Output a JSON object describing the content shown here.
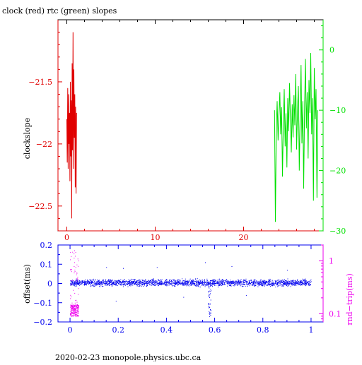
{
  "title": "clock (red) rtc (green) slopes",
  "footer": "2020-02-23  monopole.physics.ubc.ca",
  "colors": {
    "clock": "#e00000",
    "rtc": "#00e000",
    "offset": "#0000ee",
    "roundtrip": "#ee00ee",
    "frame": "#000000"
  },
  "chart_data": [
    {
      "type": "line",
      "panel": "top",
      "title": "clock (red) rtc (green) slopes",
      "ylabel": "clockslope",
      "xlim": [
        -1,
        29
      ],
      "ylim_left": [
        -22.7,
        -21.0
      ],
      "ylim_right": [
        -30,
        5
      ],
      "x_ticks": [
        0,
        10,
        20
      ],
      "y_ticks_left": [
        -21.5,
        -22,
        -22.5
      ],
      "y_tick_labels_left": [
        "−21.5",
        "−22",
        "−22.5"
      ],
      "y_ticks_right": [
        0,
        -10,
        -20,
        -30
      ],
      "y_tick_labels_right": [
        "0",
        "−10",
        "−20",
        "−30"
      ],
      "series": [
        {
          "color": "clock",
          "axis": "left",
          "x": [
            0.0,
            0.05,
            0.1,
            0.15,
            0.2,
            0.25,
            0.3,
            0.35,
            0.4,
            0.45,
            0.5,
            0.55,
            0.6,
            0.65,
            0.7,
            0.75,
            0.8,
            0.85,
            0.9,
            0.95,
            1.0,
            1.05,
            1.1
          ],
          "y": [
            -21.8,
            -22.15,
            -21.55,
            -22.2,
            -21.6,
            -22.0,
            -21.75,
            -22.3,
            -21.5,
            -22.1,
            -21.65,
            -22.6,
            -21.35,
            -22.05,
            -21.1,
            -22.2,
            -21.4,
            -21.95,
            -21.6,
            -22.35,
            -21.7,
            -22.4,
            -21.75
          ]
        },
        {
          "color": "rtc",
          "axis": "right",
          "x": [
            23.5,
            23.6,
            23.7,
            23.8,
            23.9,
            24.0,
            24.1,
            24.2,
            24.3,
            24.4,
            24.5,
            24.6,
            24.7,
            24.8,
            24.9,
            25.0,
            25.1,
            25.2,
            25.3,
            25.4,
            25.5,
            25.6,
            25.7,
            25.8,
            25.9,
            26.0,
            26.1,
            26.2,
            26.3,
            26.4,
            26.5,
            26.6,
            26.7,
            26.8,
            26.9,
            27.0,
            27.1,
            27.2,
            27.3,
            27.4,
            27.5,
            27.6,
            27.7,
            27.8,
            27.9,
            28.0,
            28.1,
            28.2,
            28.3,
            28.4
          ],
          "y": [
            -10.0,
            -28.5,
            -13.0,
            -8.5,
            -15.0,
            -11.0,
            -7.0,
            -14.0,
            -9.5,
            -21.0,
            -12.0,
            -6.5,
            -16.0,
            -10.5,
            -19.5,
            -8.0,
            -13.5,
            -5.5,
            -11.5,
            -17.0,
            -9.0,
            -14.5,
            -7.5,
            -12.5,
            -4.0,
            -16.5,
            -10.0,
            -6.0,
            -20.0,
            -11.0,
            -2.5,
            -15.5,
            -8.5,
            -23.0,
            -9.5,
            -1.5,
            -13.0,
            -7.0,
            -18.0,
            -5.0,
            -10.5,
            -0.5,
            -14.0,
            -8.0,
            -25.0,
            -3.0,
            -11.5,
            -6.5,
            -24.5,
            -10.0
          ]
        }
      ]
    },
    {
      "type": "scatter",
      "panel": "bottom",
      "ylabel_left": "offset(ms)",
      "ylabel_right": "rnd−trip(ms)",
      "xlim": [
        -0.05,
        1.05
      ],
      "ylim_left": [
        -0.2,
        0.2
      ],
      "right_axis_scale": "log",
      "ylim_right": [
        0.07,
        2.0
      ],
      "x_ticks": [
        0,
        0.2,
        0.4,
        0.6,
        0.8,
        1
      ],
      "x_tick_labels": [
        "0",
        "0.2",
        "0.4",
        "0.6",
        "0.8",
        "1"
      ],
      "y_ticks_left": [
        0.2,
        0.1,
        0,
        -0.1,
        -0.2
      ],
      "y_tick_labels_left": [
        "0.2",
        "0.1",
        "0",
        "−0.1",
        "−0.2"
      ],
      "y_ticks_right": [
        1,
        0.1
      ],
      "y_tick_labels_right": [
        "1",
        "0.1"
      ],
      "series": [
        {
          "color": "offset",
          "axis": "left",
          "description_x_range": [
            0.0,
            1.0
          ],
          "band_center": 0.005,
          "band_halfwidth": 0.025,
          "dip_x": 0.578,
          "dip_min": -0.17,
          "outliers": [
            [
              0.15,
              0.085
            ],
            [
              0.22,
              0.08
            ],
            [
              0.36,
              0.085
            ],
            [
              0.56,
              0.11
            ],
            [
              0.67,
              0.09
            ],
            [
              0.19,
              -0.09
            ],
            [
              0.47,
              -0.07
            ],
            [
              0.73,
              -0.06
            ],
            [
              0.9,
              0.07
            ]
          ]
        },
        {
          "color": "roundtrip",
          "axis": "right",
          "description_x_range": [
            0.0,
            0.035
          ],
          "x_range": [
            0.0,
            0.035
          ],
          "ylim_values": [
            0.09,
            1.6
          ]
        }
      ]
    }
  ]
}
